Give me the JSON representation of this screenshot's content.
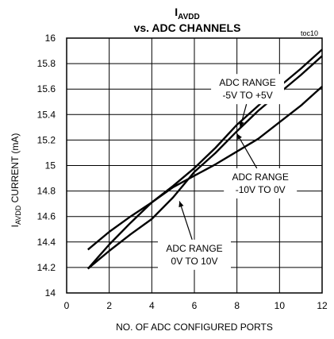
{
  "chart_data": {
    "type": "line",
    "title_main": "I",
    "title_sub": "AVDD",
    "title_line2": "vs. ADC CHANNELS",
    "figure_id": "toc10",
    "xlabel": "NO. OF ADC CONFIGURED PORTS",
    "ylabel_main": "I",
    "ylabel_sub": "AVDD",
    "ylabel_rest": " CURRENT  (mA)",
    "xlim": [
      0,
      12
    ],
    "ylim": [
      14,
      16
    ],
    "x_ticks": [
      0,
      2,
      4,
      6,
      8,
      10,
      12
    ],
    "y_ticks": [
      14,
      14.2,
      14.4,
      14.6,
      14.8,
      15,
      15.2,
      15.4,
      15.6,
      15.8,
      16
    ],
    "x_tick_labels": [
      "0",
      "2",
      "4",
      "6",
      "8",
      "10",
      "12"
    ],
    "y_tick_labels": [
      "14",
      "14.2",
      "14.4",
      "14.6",
      "14.8",
      "15",
      "15.2",
      "15.4",
      "15.6",
      "15.8",
      "16"
    ],
    "grid": true,
    "series": [
      {
        "x": [
          1,
          2,
          3,
          4,
          5,
          6,
          7,
          8,
          9,
          10,
          11,
          12
        ],
        "y": [
          14.19,
          14.33,
          14.46,
          14.58,
          14.75,
          14.95,
          15.1,
          15.27,
          15.43,
          15.57,
          15.71,
          15.86
        ]
      },
      {
        "x": [
          1,
          2,
          3,
          4,
          5,
          6,
          7,
          8,
          9,
          10,
          11,
          12
        ],
        "y": [
          14.19,
          14.38,
          14.55,
          14.71,
          14.84,
          14.98,
          15.14,
          15.32,
          15.47,
          15.62,
          15.76,
          15.91
        ]
      },
      {
        "x": [
          1,
          2,
          3,
          4,
          5,
          6,
          7,
          8,
          9,
          10,
          11,
          12
        ],
        "y": [
          14.34,
          14.48,
          14.6,
          14.71,
          14.83,
          14.92,
          15.01,
          15.11,
          15.21,
          15.34,
          15.47,
          15.62
        ]
      }
    ],
    "annotations": [
      {
        "lines": [
          "ADC RANGE",
          "-5V TO +5V"
        ],
        "x": 8.5,
        "y": 15.6,
        "arrow_to": [
          8.15,
          15.3
        ]
      },
      {
        "lines": [
          "ADC RANGE",
          "-10V TO 0V"
        ],
        "x": 9.1,
        "y": 14.86,
        "arrow_to": [
          8.0,
          15.25
        ]
      },
      {
        "lines": [
          "ADC RANGE",
          "0V TO 10V"
        ],
        "x": 6.0,
        "y": 14.3,
        "arrow_to": [
          5.3,
          14.72
        ]
      }
    ]
  }
}
